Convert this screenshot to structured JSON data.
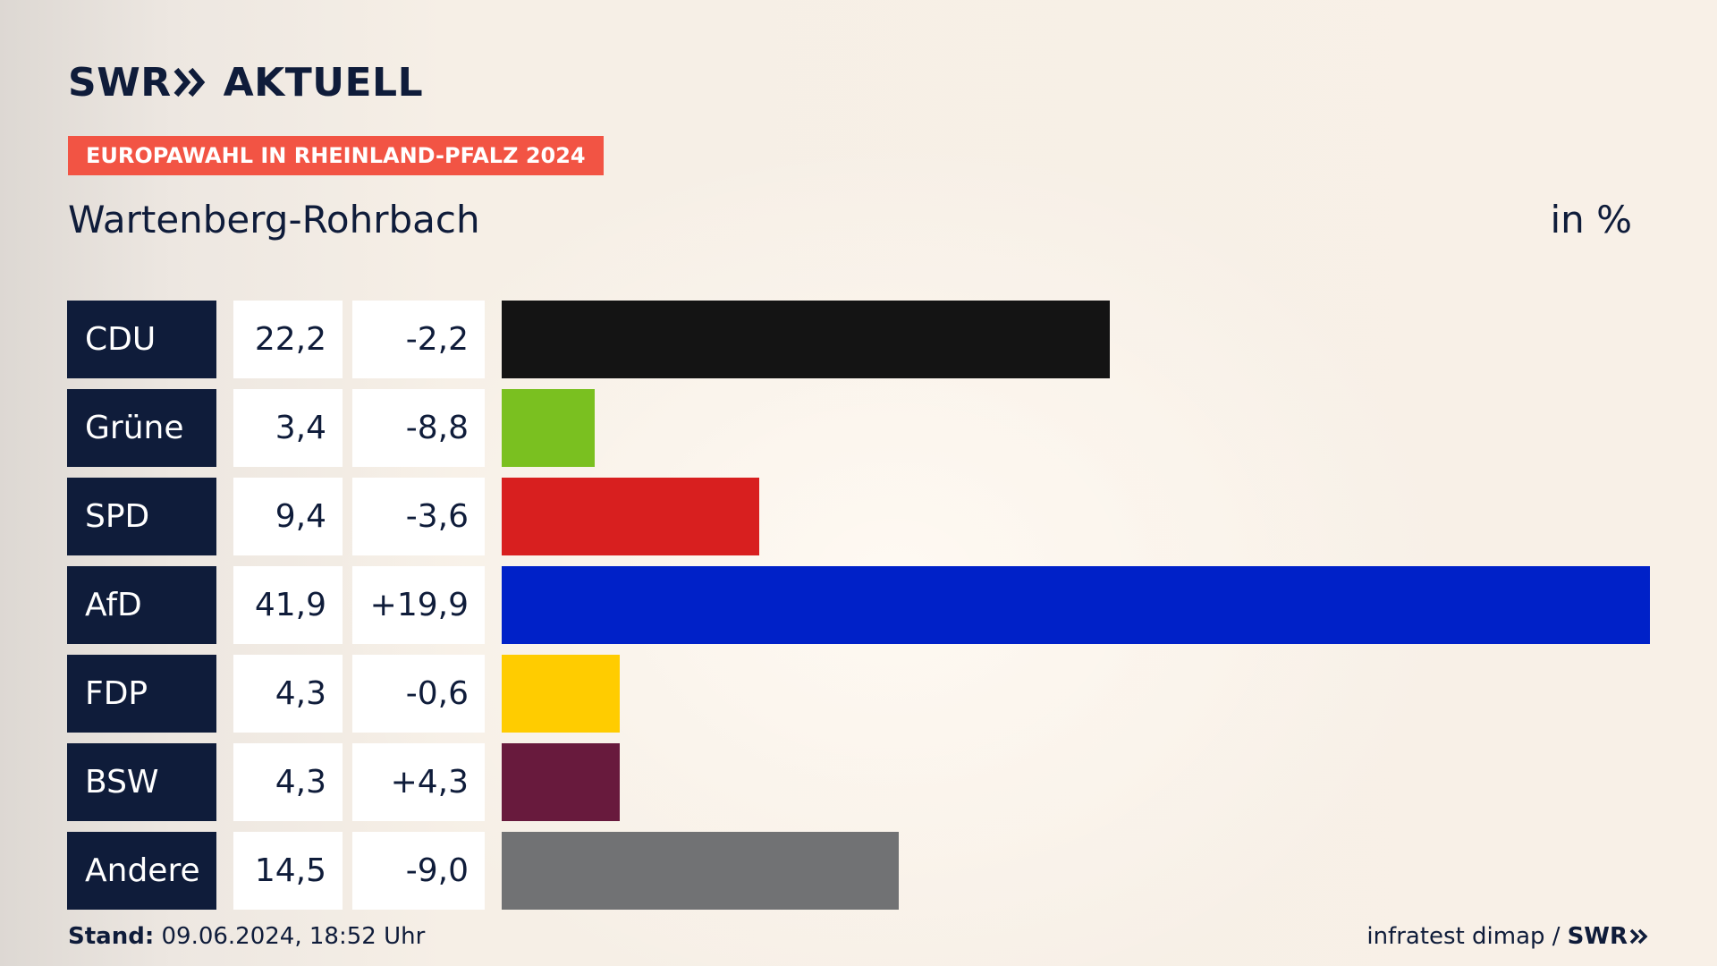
{
  "brand": {
    "logo_part1": "SWR",
    "logo_part2": "AKTUELL"
  },
  "header": {
    "election": "EUROPAWAHL IN RHEINLAND-PFALZ 2024",
    "place": "Wartenberg-Rohrbach",
    "unit": "in %"
  },
  "footer": {
    "stand_label": "Stand:",
    "stand_value": "09.06.2024, 18:52 Uhr",
    "source": "infratest dimap /",
    "source_brand": "SWR"
  },
  "colors": {
    "navy": "#0f1c3a",
    "badge": "#f25444"
  },
  "chart_data": {
    "type": "bar",
    "categories": [
      "CDU",
      "Grüne",
      "SPD",
      "AfD",
      "FDP",
      "BSW",
      "Andere"
    ],
    "values": [
      22.2,
      3.4,
      9.4,
      41.9,
      4.3,
      4.3,
      14.5
    ],
    "value_labels": [
      "22,2",
      "3,4",
      "9,4",
      "41,9",
      "4,3",
      "4,3",
      "14,5"
    ],
    "change_labels": [
      "-2,2",
      "-8,8",
      "-3,6",
      "+19,9",
      "-0,6",
      "+4,3",
      "-9,0"
    ],
    "changes": [
      -2.2,
      -8.8,
      -3.6,
      19.9,
      -0.6,
      4.3,
      -9.0
    ],
    "colors": [
      "#141414",
      "#7ac020",
      "#d81f1f",
      "#0021c8",
      "#ffcc00",
      "#681a3d",
      "#717274"
    ],
    "title": "Wartenberg-Rohrbach",
    "unit": "in %",
    "orientation": "horizontal",
    "xlim": [
      0,
      41.9
    ]
  }
}
